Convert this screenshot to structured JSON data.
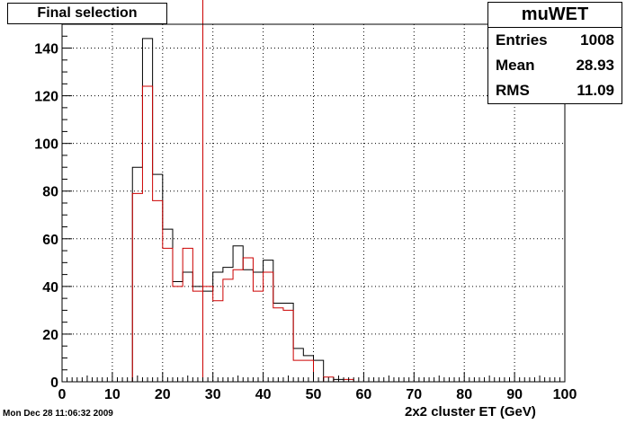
{
  "title": "Final selection",
  "stats": {
    "name": "muWET",
    "rows": [
      {
        "label": "Entries",
        "value": "1008"
      },
      {
        "label": "Mean",
        "value": "28.93"
      },
      {
        "label": "RMS",
        "value": "11.09"
      }
    ]
  },
  "footer": "Mon Dec 28 11:06:32 2009",
  "chart_data": {
    "type": "histogram",
    "xlabel": "2x2 cluster ET (GeV)",
    "xlim": [
      0,
      100
    ],
    "ylim": [
      0,
      150
    ],
    "xticks": [
      0,
      10,
      20,
      30,
      40,
      50,
      60,
      70,
      80,
      90,
      100
    ],
    "yticks": [
      0,
      20,
      40,
      60,
      80,
      100,
      120,
      140
    ],
    "grid": true,
    "bin_width": 2,
    "vertical_line_x": 28,
    "series": [
      {
        "color": "#000000",
        "values": [
          0,
          0,
          0,
          0,
          0,
          0,
          0,
          90,
          144,
          87,
          64,
          42,
          46,
          40,
          38,
          46,
          48,
          57,
          47,
          46,
          51,
          33,
          33,
          14,
          11,
          9,
          0,
          1,
          0,
          0,
          0,
          0,
          0,
          0,
          0,
          0,
          0,
          0,
          0,
          0,
          0,
          0,
          0,
          0,
          0,
          0,
          0,
          0,
          0,
          0
        ]
      },
      {
        "color": "#cc0000",
        "values": [
          0,
          0,
          0,
          0,
          0,
          0,
          0,
          79,
          124,
          76,
          56,
          40,
          56,
          38,
          40,
          34,
          43,
          47,
          52,
          38,
          46,
          31,
          30,
          9,
          9,
          0,
          2,
          0,
          1,
          0,
          0,
          0,
          0,
          0,
          0,
          0,
          0,
          0,
          0,
          0,
          0,
          0,
          0,
          0,
          0,
          0,
          0,
          0,
          0,
          0
        ]
      }
    ]
  }
}
